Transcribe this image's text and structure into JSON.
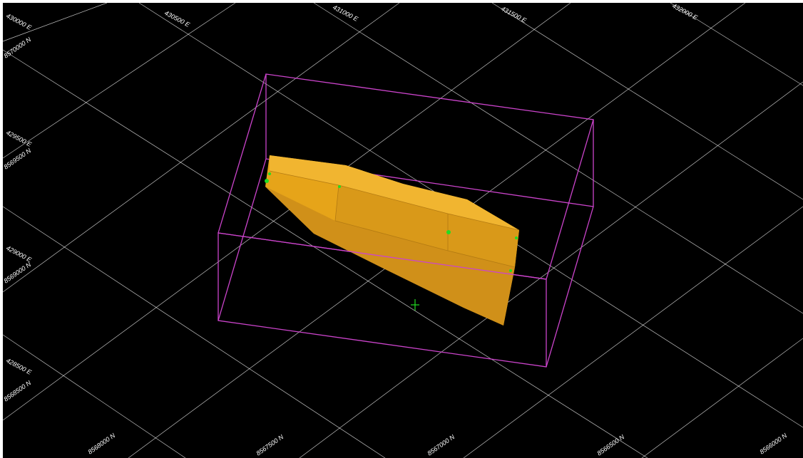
{
  "viewport": {
    "background": "#000000",
    "grid_color": "#ffffff",
    "bounding_box_color": "#cc44cc",
    "solid_color": "#e6a419",
    "marker_color": "#22dd22"
  },
  "grid_labels": {
    "easting_top": [
      "430500 E",
      "431000 E",
      "431500 E",
      "432000 E"
    ],
    "corner": [
      "430000 E",
      "8570000 N"
    ],
    "left_pairs": [
      [
        "429500 E",
        "8569500 N"
      ],
      [
        "429000 E",
        "8569000 N"
      ],
      [
        "428500 E",
        "8568500 N"
      ]
    ],
    "northing_bottom": [
      "8568000 N",
      "8567500 N",
      "8567000 N",
      "8566500 N",
      "8566000 N"
    ]
  }
}
